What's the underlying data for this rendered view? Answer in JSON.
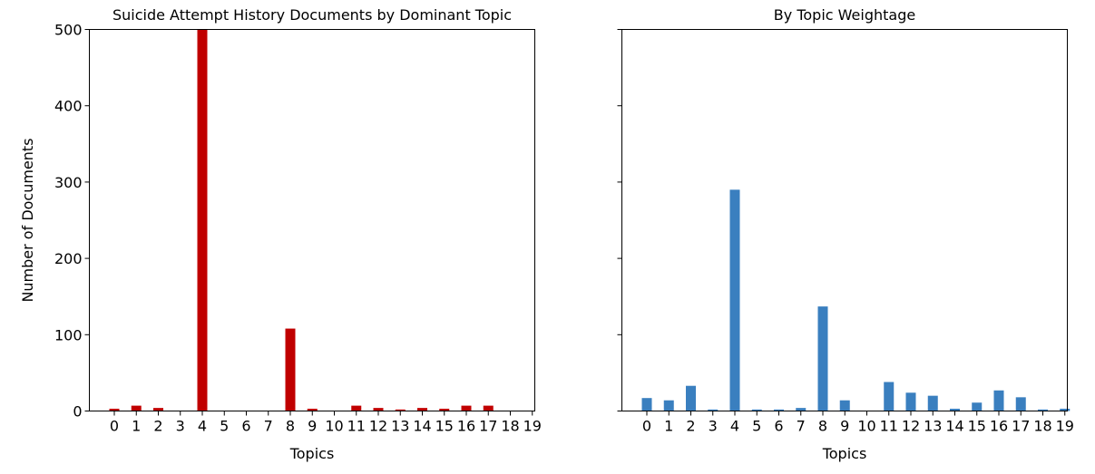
{
  "chart_data": [
    {
      "type": "bar",
      "title": "Suicide Attempt History Documents by Dominant Topic",
      "xlabel": "Topics",
      "ylabel": "Number of Documents",
      "categories": [
        "0",
        "1",
        "2",
        "3",
        "4",
        "5",
        "6",
        "7",
        "8",
        "9",
        "10",
        "11",
        "12",
        "13",
        "14",
        "15",
        "16",
        "17",
        "18",
        "19"
      ],
      "values": [
        3,
        7,
        4,
        0,
        500,
        0,
        0,
        0,
        108,
        3,
        0,
        7,
        4,
        2,
        4,
        3,
        7,
        7,
        0,
        0
      ],
      "ylim": [
        0,
        500
      ],
      "yticks": [
        "0",
        "100",
        "200",
        "300",
        "400",
        "500"
      ],
      "color": "#c00000",
      "grid": false
    },
    {
      "type": "bar",
      "title": "By Topic Weightage",
      "xlabel": "Topics",
      "ylabel": "",
      "categories": [
        "0",
        "1",
        "2",
        "3",
        "4",
        "5",
        "6",
        "7",
        "8",
        "9",
        "10",
        "11",
        "12",
        "13",
        "14",
        "15",
        "16",
        "17",
        "18",
        "19"
      ],
      "values": [
        17,
        14,
        33,
        2,
        290,
        2,
        2,
        4,
        137,
        14,
        0,
        38,
        24,
        20,
        3,
        11,
        27,
        18,
        2,
        3
      ],
      "ylim": [
        0,
        500
      ],
      "sharey": true,
      "color": "#3a7fbf",
      "grid": false
    }
  ]
}
